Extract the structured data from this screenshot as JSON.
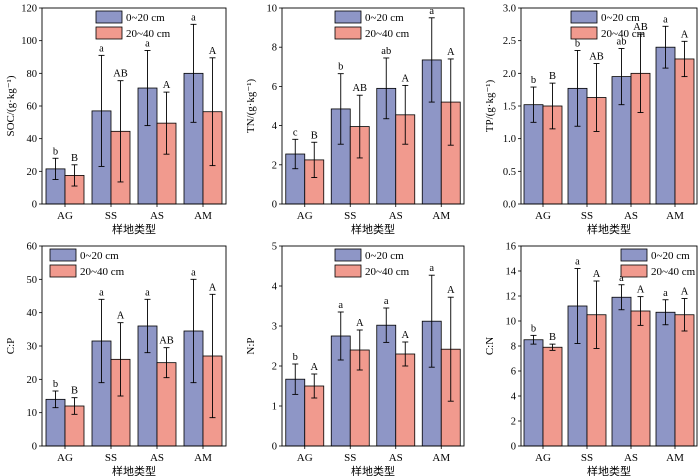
{
  "colors": {
    "series1": "#8e96c6",
    "series2": "#f19a8e",
    "axis": "#000000"
  },
  "chart_data": [
    {
      "type": "bar",
      "ylabel": "SOC/(g·kg⁻¹)",
      "xlabel": "样地类型",
      "categories": [
        "AG",
        "SS",
        "AS",
        "AM"
      ],
      "ylim": [
        0,
        120
      ],
      "yticks": [
        0,
        20,
        40,
        60,
        80,
        100,
        120
      ],
      "legend": "top-center",
      "series": [
        {
          "name": "0~20 cm",
          "values": [
            21.5,
            57,
            71,
            80
          ],
          "errors": [
            6.5,
            34,
            23,
            30
          ],
          "letters": [
            "b",
            "a",
            "a",
            "a"
          ]
        },
        {
          "name": "20~40 cm",
          "values": [
            17.5,
            44.5,
            49.5,
            56.5
          ],
          "errors": [
            6.5,
            31,
            19,
            33
          ],
          "letters": [
            "B",
            "AB",
            "A",
            "A"
          ]
        }
      ]
    },
    {
      "type": "bar",
      "ylabel": "TN/(g·kg⁻¹)",
      "xlabel": "样地类型",
      "categories": [
        "AG",
        "SS",
        "AS",
        "AM"
      ],
      "ylim": [
        0,
        10
      ],
      "yticks": [
        0,
        2,
        4,
        6,
        8,
        10
      ],
      "legend": "top-center",
      "series": [
        {
          "name": "0~20 cm",
          "values": [
            2.55,
            4.85,
            5.9,
            7.35
          ],
          "errors": [
            0.75,
            1.8,
            1.55,
            2.15
          ],
          "letters": [
            "c",
            "b",
            "ab",
            "a"
          ]
        },
        {
          "name": "20~40 cm",
          "values": [
            2.25,
            3.95,
            4.55,
            5.2
          ],
          "errors": [
            0.9,
            1.6,
            1.5,
            2.2
          ],
          "letters": [
            "B",
            "AB",
            "A",
            "A"
          ]
        }
      ]
    },
    {
      "type": "bar",
      "ylabel": "TP/(g·kg⁻¹)",
      "xlabel": "样地类型",
      "categories": [
        "AG",
        "SS",
        "AS",
        "AM"
      ],
      "ylim": [
        0,
        3.0
      ],
      "yticks": [
        0,
        0.5,
        1.0,
        1.5,
        2.0,
        2.5,
        3.0
      ],
      "legend": "top-center",
      "series": [
        {
          "name": "0~20 cm",
          "values": [
            1.52,
            1.77,
            1.95,
            2.4
          ],
          "errors": [
            0.27,
            0.58,
            0.43,
            0.32
          ],
          "letters": [
            "b",
            "b",
            "ab",
            "a"
          ]
        },
        {
          "name": "20~40 cm",
          "values": [
            1.5,
            1.63,
            2.0,
            2.22
          ],
          "errors": [
            0.35,
            0.52,
            0.6,
            0.27
          ],
          "letters": [
            "B",
            "AB",
            "AB",
            "A"
          ]
        }
      ]
    },
    {
      "type": "bar",
      "ylabel": "C:P",
      "xlabel": "样地类型",
      "categories": [
        "AG",
        "SS",
        "AS",
        "AM"
      ],
      "ylim": [
        0,
        60
      ],
      "yticks": [
        0,
        10,
        20,
        30,
        40,
        50,
        60
      ],
      "legend": "top-left",
      "series": [
        {
          "name": "0~20 cm",
          "values": [
            14,
            31.5,
            36,
            34.5
          ],
          "errors": [
            2.5,
            12.5,
            8,
            15.5
          ],
          "letters": [
            "b",
            "a",
            "a",
            "a"
          ]
        },
        {
          "name": "20~40 cm",
          "values": [
            12,
            26,
            25,
            27
          ],
          "errors": [
            2.5,
            11,
            4.5,
            18.5
          ],
          "letters": [
            "B",
            "A",
            "AB",
            "A"
          ]
        }
      ]
    },
    {
      "type": "bar",
      "ylabel": "N:P",
      "xlabel": "样地类型",
      "categories": [
        "AG",
        "SS",
        "AS",
        "AM"
      ],
      "ylim": [
        0,
        5
      ],
      "yticks": [
        0,
        1,
        2,
        3,
        4,
        5
      ],
      "legend": "top-center",
      "series": [
        {
          "name": "0~20 cm",
          "values": [
            1.67,
            2.75,
            3.02,
            3.12
          ],
          "errors": [
            0.38,
            0.6,
            0.43,
            1.15
          ],
          "letters": [
            "b",
            "a",
            "a",
            "a"
          ]
        },
        {
          "name": "20~40 cm",
          "values": [
            1.5,
            2.4,
            2.3,
            2.42
          ],
          "errors": [
            0.3,
            0.5,
            0.3,
            1.3
          ],
          "letters": [
            "A",
            "A",
            "A",
            "A"
          ]
        }
      ]
    },
    {
      "type": "bar",
      "ylabel": "C:N",
      "xlabel": "样地类型",
      "categories": [
        "AG",
        "SS",
        "AS",
        "AM"
      ],
      "ylim": [
        0,
        16
      ],
      "yticks": [
        0,
        2,
        4,
        6,
        8,
        10,
        12,
        14,
        16
      ],
      "legend": "top-right",
      "series": [
        {
          "name": "0~20 cm",
          "values": [
            8.5,
            11.2,
            11.9,
            10.7
          ],
          "errors": [
            0.35,
            3.0,
            1.0,
            1.0
          ],
          "letters": [
            "b",
            "a",
            "a",
            "a"
          ]
        },
        {
          "name": "20~40 cm",
          "values": [
            7.9,
            10.5,
            10.8,
            10.5
          ],
          "errors": [
            0.25,
            2.7,
            1.15,
            1.3
          ],
          "letters": [
            "B",
            "A",
            "A",
            "A"
          ]
        }
      ]
    }
  ]
}
